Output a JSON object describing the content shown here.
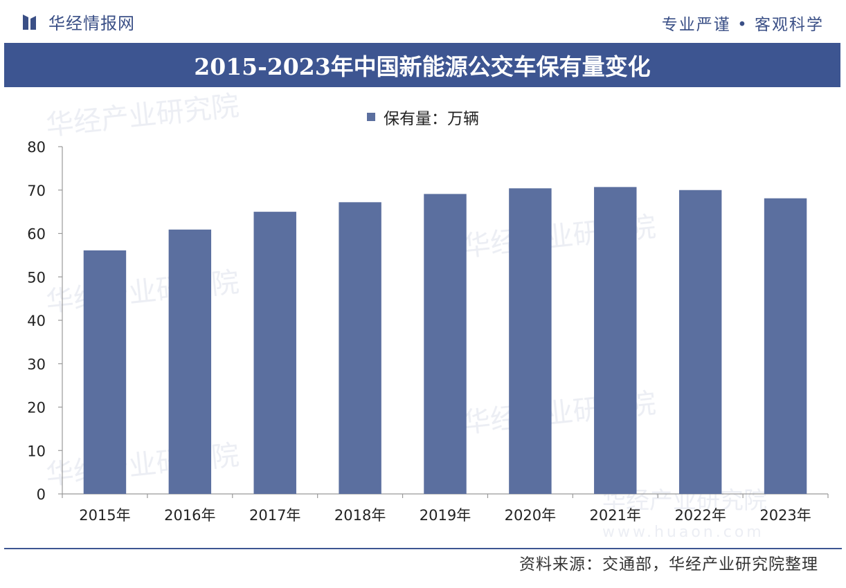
{
  "header": {
    "brand_name": "华经情报网",
    "slogan": "专业严谨 • 客观科学"
  },
  "watermark": {
    "text": "华经产业研究院",
    "site": "www.huaon.com"
  },
  "chart_data": {
    "type": "bar",
    "title": "2015-2023年中国新能源公交车保有量变化",
    "categories": [
      "2015年",
      "2016年",
      "2017年",
      "2018年",
      "2019年",
      "2020年",
      "2021年",
      "2022年",
      "2023年"
    ],
    "series": [
      {
        "name": "保有量：万辆",
        "values": [
          56.1,
          60.9,
          65.0,
          67.2,
          69.1,
          70.4,
          70.7,
          70.0,
          68.1
        ],
        "color": "#5b6f9f"
      }
    ],
    "ylim": [
      0,
      80
    ],
    "yticks": [
      0,
      10,
      20,
      30,
      40,
      50,
      60,
      70,
      80
    ],
    "xlabel": "",
    "ylabel": "",
    "grid": false,
    "legend": "top-center"
  },
  "footer": {
    "source": "资料来源：交通部，华经产业研究院整理"
  },
  "colors": {
    "brand": "#3d5591",
    "bar": "#5b6f9f"
  }
}
